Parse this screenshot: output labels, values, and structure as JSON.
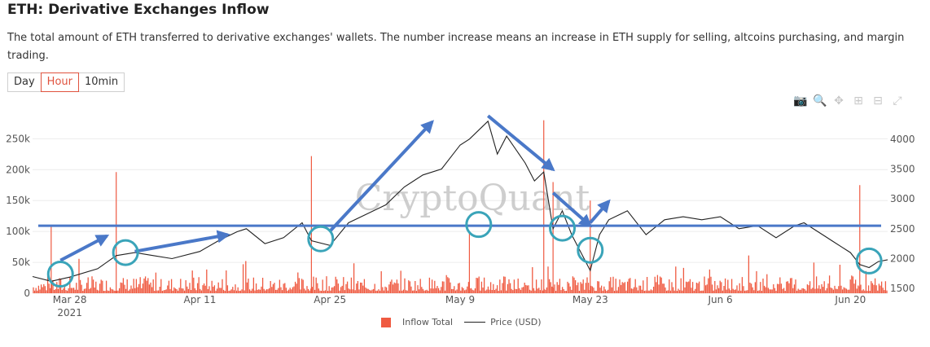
{
  "header": {
    "title": "ETH: Derivative Exchanges Inflow",
    "description": "The total amount of ETH transferred to derivative exchanges' wallets. The number increase means an increase in ETH supply for selling, altcoins purchasing, and margin trading."
  },
  "tabs": [
    {
      "label": "Day",
      "active": false
    },
    {
      "label": "Hour",
      "active": true
    },
    {
      "label": "10min",
      "active": false
    }
  ],
  "modebar": [
    "camera-icon",
    "zoom-icon",
    "pan-icon",
    "zoom-in-icon",
    "zoom-out-icon",
    "autoscale-icon"
  ],
  "watermark": "CryptoQuant",
  "colors": {
    "inflow": "#ef5a41",
    "price": "#222222",
    "annotation_line": "#4a78c8",
    "annotation_circle": "#3aa4b9"
  },
  "chart_data": {
    "type": "bar",
    "title": "ETH: Derivative Exchanges Inflow",
    "x_tick_labels": [
      {
        "date": "2021-03-28",
        "label": "Mar 28",
        "sublabel": "2021"
      },
      {
        "date": "2021-04-11",
        "label": "Apr 11"
      },
      {
        "date": "2021-04-25",
        "label": "Apr 25"
      },
      {
        "date": "2021-05-09",
        "label": "May 9"
      },
      {
        "date": "2021-05-23",
        "label": "May 23"
      },
      {
        "date": "2021-06-06",
        "label": "Jun 6"
      },
      {
        "date": "2021-06-20",
        "label": "Jun 20"
      }
    ],
    "xlim": [
      "2021-03-24",
      "2021-06-24"
    ],
    "y_left": {
      "lim": [
        0,
        290000
      ],
      "ticks": [
        0,
        50000,
        100000,
        150000,
        200000,
        250000
      ],
      "tick_labels": [
        "0",
        "50k",
        "100k",
        "150k",
        "200k",
        "250k"
      ]
    },
    "y_right": {
      "lim": [
        1420,
        4420
      ],
      "ticks": [
        1500,
        2000,
        2500,
        3000,
        3500,
        4000
      ],
      "tick_labels": [
        "1500",
        "2000",
        "2500",
        "3000",
        "3500",
        "4000"
      ]
    },
    "legend": {
      "placement": "bottom-center",
      "entries": [
        "Inflow Total",
        "Price (USD)"
      ]
    },
    "series": [
      {
        "name": "Inflow Total",
        "type": "bar",
        "axis": "left",
        "spikes": [
          {
            "date": "2021-03-26",
            "value": 110000
          },
          {
            "date": "2021-04-02",
            "value": 196000
          },
          {
            "date": "2021-04-23",
            "value": 222000
          },
          {
            "date": "2021-05-10",
            "value": 100000
          },
          {
            "date": "2021-05-18",
            "value": 280000
          },
          {
            "date": "2021-05-19",
            "value": 180000
          },
          {
            "date": "2021-05-23",
            "value": 150000
          },
          {
            "date": "2021-06-21",
            "value": 175000
          }
        ]
      },
      {
        "name": "Price (USD)",
        "type": "line",
        "axis": "right",
        "points": [
          {
            "date": "2021-03-24",
            "value": 1700
          },
          {
            "date": "2021-03-26",
            "value": 1620
          },
          {
            "date": "2021-03-28",
            "value": 1690
          },
          {
            "date": "2021-03-31",
            "value": 1830
          },
          {
            "date": "2021-04-02",
            "value": 2050
          },
          {
            "date": "2021-04-04",
            "value": 2100
          },
          {
            "date": "2021-04-06",
            "value": 2050
          },
          {
            "date": "2021-04-08",
            "value": 2000
          },
          {
            "date": "2021-04-11",
            "value": 2120
          },
          {
            "date": "2021-04-13",
            "value": 2300
          },
          {
            "date": "2021-04-15",
            "value": 2450
          },
          {
            "date": "2021-04-16",
            "value": 2500
          },
          {
            "date": "2021-04-18",
            "value": 2250
          },
          {
            "date": "2021-04-20",
            "value": 2350
          },
          {
            "date": "2021-04-22",
            "value": 2600
          },
          {
            "date": "2021-04-23",
            "value": 2300
          },
          {
            "date": "2021-04-25",
            "value": 2220
          },
          {
            "date": "2021-04-27",
            "value": 2600
          },
          {
            "date": "2021-04-29",
            "value": 2750
          },
          {
            "date": "2021-05-01",
            "value": 2900
          },
          {
            "date": "2021-05-03",
            "value": 3200
          },
          {
            "date": "2021-05-05",
            "value": 3400
          },
          {
            "date": "2021-05-07",
            "value": 3500
          },
          {
            "date": "2021-05-09",
            "value": 3900
          },
          {
            "date": "2021-05-10",
            "value": 4000
          },
          {
            "date": "2021-05-12",
            "value": 4300
          },
          {
            "date": "2021-05-13",
            "value": 3750
          },
          {
            "date": "2021-05-14",
            "value": 4050
          },
          {
            "date": "2021-05-16",
            "value": 3600
          },
          {
            "date": "2021-05-17",
            "value": 3300
          },
          {
            "date": "2021-05-18",
            "value": 3450
          },
          {
            "date": "2021-05-19",
            "value": 2500
          },
          {
            "date": "2021-05-20",
            "value": 2800
          },
          {
            "date": "2021-05-21",
            "value": 2400
          },
          {
            "date": "2021-05-23",
            "value": 1800
          },
          {
            "date": "2021-05-24",
            "value": 2400
          },
          {
            "date": "2021-05-25",
            "value": 2650
          },
          {
            "date": "2021-05-27",
            "value": 2800
          },
          {
            "date": "2021-05-29",
            "value": 2400
          },
          {
            "date": "2021-05-31",
            "value": 2650
          },
          {
            "date": "2021-06-02",
            "value": 2700
          },
          {
            "date": "2021-06-04",
            "value": 2650
          },
          {
            "date": "2021-06-06",
            "value": 2700
          },
          {
            "date": "2021-06-08",
            "value": 2500
          },
          {
            "date": "2021-06-10",
            "value": 2550
          },
          {
            "date": "2021-06-12",
            "value": 2350
          },
          {
            "date": "2021-06-14",
            "value": 2550
          },
          {
            "date": "2021-06-15",
            "value": 2600
          },
          {
            "date": "2021-06-17",
            "value": 2400
          },
          {
            "date": "2021-06-18",
            "value": 2300
          },
          {
            "date": "2021-06-19",
            "value": 2200
          },
          {
            "date": "2021-06-20",
            "value": 2100
          },
          {
            "date": "2021-06-21",
            "value": 1900
          },
          {
            "date": "2021-06-22",
            "value": 1850
          },
          {
            "date": "2021-06-23",
            "value": 1950
          },
          {
            "date": "2021-06-24",
            "value": 1980
          }
        ]
      }
    ],
    "annotations": {
      "horizontal_line": {
        "price": 2550
      },
      "circles": [
        {
          "date": "2021-03-27",
          "price": 1740
        },
        {
          "date": "2021-04-03",
          "price": 2100
        },
        {
          "date": "2021-04-24",
          "price": 2330
        },
        {
          "date": "2021-05-11",
          "price": 2570
        },
        {
          "date": "2021-05-20",
          "price": 2510
        },
        {
          "date": "2021-05-23",
          "price": 2140
        },
        {
          "date": "2021-06-22",
          "price": 1960
        }
      ],
      "arrows": [
        {
          "from": {
            "date": "2021-03-27",
            "price": 1970
          },
          "to": {
            "date": "2021-04-01",
            "price": 2380
          }
        },
        {
          "from": {
            "date": "2021-04-04",
            "price": 2120
          },
          "to": {
            "date": "2021-04-14",
            "price": 2400
          }
        },
        {
          "from": {
            "date": "2021-04-25",
            "price": 2460
          },
          "to": {
            "date": "2021-05-06",
            "price": 4290
          }
        },
        {
          "from": {
            "date": "2021-05-12",
            "price": 4390
          },
          "to": {
            "date": "2021-05-19",
            "price": 3490
          }
        },
        {
          "from": {
            "date": "2021-05-19",
            "price": 3100
          },
          "to": {
            "date": "2021-05-23",
            "price": 2550
          }
        },
        {
          "from": {
            "date": "2021-05-23",
            "price": 2600
          },
          "to": {
            "date": "2021-05-25",
            "price": 2960
          }
        }
      ]
    }
  }
}
